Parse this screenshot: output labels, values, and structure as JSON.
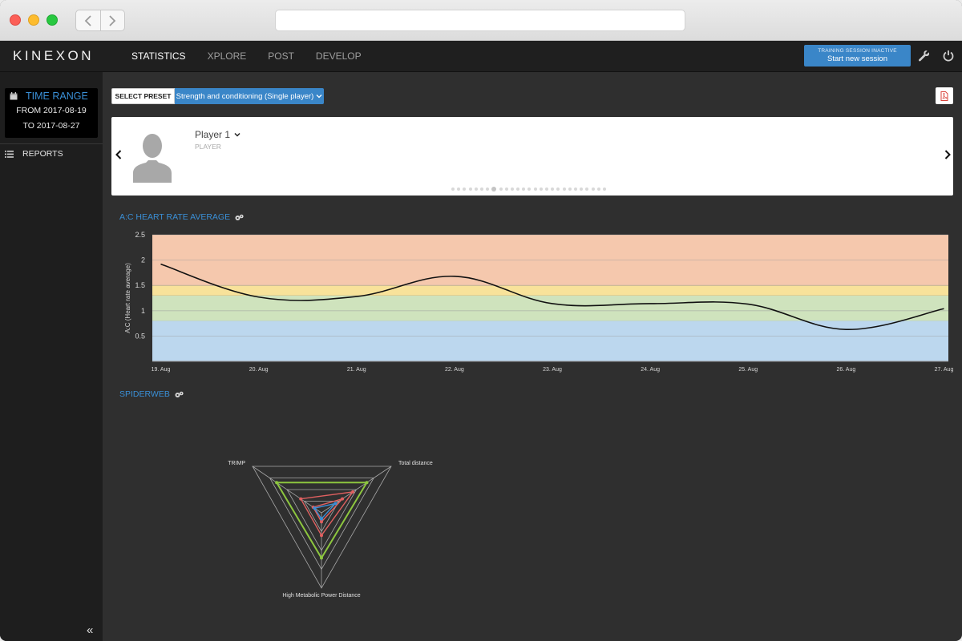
{
  "app": {
    "logo": "KINEXON"
  },
  "nav": {
    "tabs": [
      {
        "label": "STATISTICS",
        "active": true
      },
      {
        "label": "XPLORE",
        "active": false
      },
      {
        "label": "POST",
        "active": false
      },
      {
        "label": "DEVELOP",
        "active": false
      }
    ]
  },
  "session": {
    "status": "TRAINING SESSION INACTIVE",
    "button": "Start new session"
  },
  "sidebar": {
    "time_range": {
      "title": "TIME RANGE",
      "from": "FROM 2017-08-19",
      "to": "TO 2017-08-27"
    },
    "reports": "REPORTS"
  },
  "preset": {
    "select_label": "SELECT PRESET",
    "selected": "Strength and conditioning (Single player)"
  },
  "player": {
    "name": "Player 1",
    "role": "PLAYER",
    "pages": 27,
    "current_page": 7
  },
  "colors": {
    "accent": "#3a86c8",
    "zone_red": "#f5c8ad",
    "zone_yellow": "#f8e29a",
    "zone_green": "#cfe3bd",
    "zone_blue": "#bcd7ee",
    "spider_green": "#8dc63f",
    "spider_red": "#e06060",
    "spider_blue": "#3a8fd6"
  },
  "chart_data": [
    {
      "type": "line",
      "title": "A:C HEART RATE AVERAGE",
      "ylabel": "A:C (Heart rate average)",
      "xlabel": "",
      "ylim": [
        0,
        2.5
      ],
      "yticks": [
        "0.5",
        "1",
        "1.5",
        "2",
        "2.5"
      ],
      "categories": [
        "19. Aug",
        "20. Aug",
        "21. Aug",
        "22. Aug",
        "23. Aug",
        "24. Aug",
        "25. Aug",
        "26. Aug",
        "27. Aug"
      ],
      "series": [
        {
          "values": [
            1.92,
            1.27,
            1.28,
            1.68,
            1.14,
            1.14,
            1.13,
            0.63,
            1.04
          ]
        }
      ],
      "bands": [
        {
          "from": 0,
          "to": 0.8,
          "color": "blue"
        },
        {
          "from": 0.8,
          "to": 1.3,
          "color": "green"
        },
        {
          "from": 1.3,
          "to": 1.5,
          "color": "yellow"
        },
        {
          "from": 1.5,
          "to": 2.5,
          "color": "red"
        }
      ],
      "grid": true
    },
    {
      "type": "radar",
      "title": "SPIDERWEB",
      "axes": [
        "TRIMP",
        "Total distance",
        "High Metabolic Power Distance"
      ],
      "max": 1,
      "series": [
        {
          "color": "green",
          "values": [
            0.65,
            0.65,
            0.6
          ]
        },
        {
          "color": "red",
          "values": [
            0.3,
            0.45,
            0.3
          ]
        },
        {
          "color": "red",
          "values": [
            0.12,
            0.3,
            0.12
          ]
        },
        {
          "color": "blue",
          "values": [
            0.1,
            0.2,
            0.08
          ]
        }
      ]
    }
  ]
}
